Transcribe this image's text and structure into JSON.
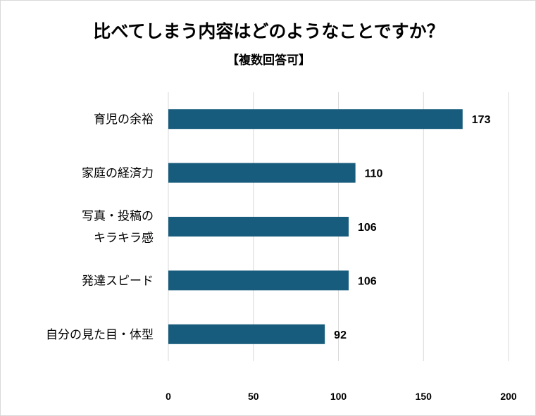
{
  "chart_data": {
    "type": "bar",
    "orientation": "horizontal",
    "title": "比べてしまう内容はどのようなことですか？",
    "subtitle": "【複数回答可】",
    "categories": [
      [
        "育児の余裕"
      ],
      [
        "家庭の経済力"
      ],
      [
        "写真・投稿の",
        "キラキラ感"
      ],
      [
        "発達スピード"
      ],
      [
        "自分の見た目・体型"
      ]
    ],
    "values": [
      173,
      110,
      106,
      106,
      92
    ],
    "xlim": [
      0,
      200
    ],
    "xticks": [
      "0",
      "50",
      "100",
      "150",
      "200"
    ],
    "grid": true,
    "bar_color": "#175c7c",
    "grid_color": "#d9d9d9"
  }
}
